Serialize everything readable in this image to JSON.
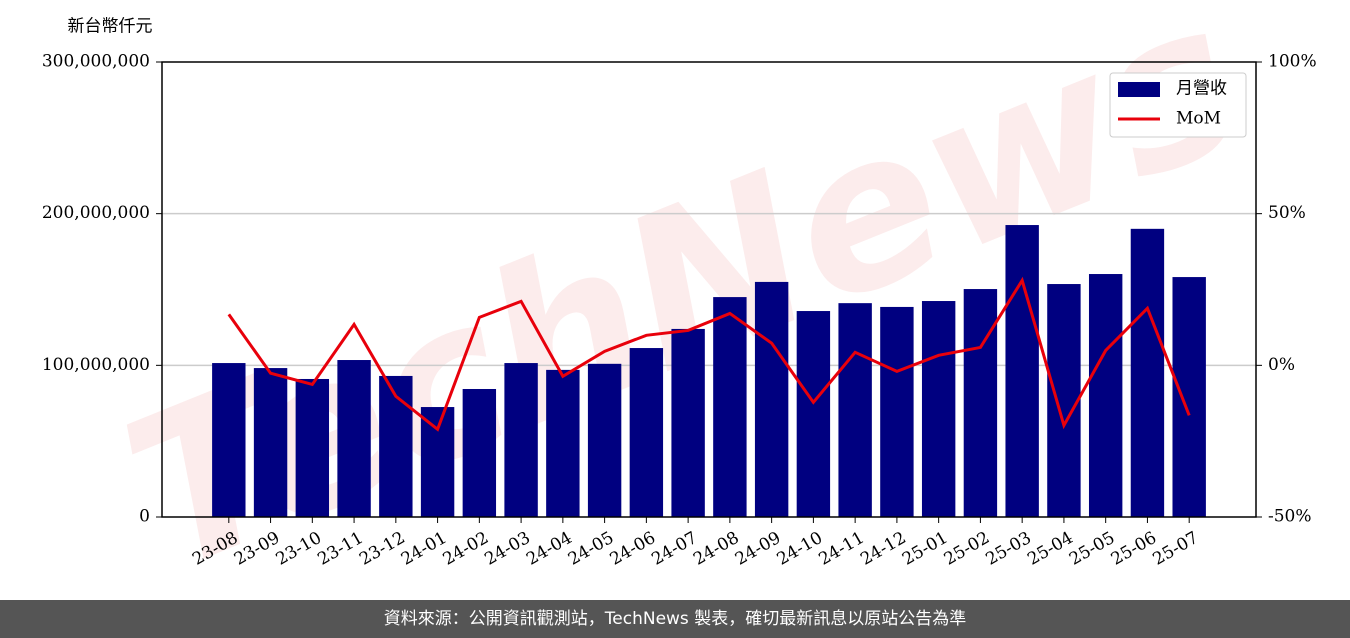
{
  "chart_data": {
    "type": "bar_line",
    "ylabel": "新台幣仟元",
    "watermark": "TechNews",
    "categories": [
      "23-08",
      "23-09",
      "23-10",
      "23-11",
      "23-12",
      "24-01",
      "24-02",
      "24-03",
      "24-04",
      "24-05",
      "24-06",
      "24-07",
      "24-08",
      "24-09",
      "24-10",
      "24-11",
      "24-12",
      "25-01",
      "25-02",
      "25-03",
      "25-04",
      "25-05",
      "25-06",
      "25-07"
    ],
    "series": [
      {
        "name": "月營收",
        "type": "bar",
        "color": "#000080",
        "values": [
          101500000,
          98200000,
          91000000,
          103500000,
          93000000,
          72500000,
          84400000,
          101500000,
          97000000,
          101000000,
          111400000,
          124000000,
          145000000,
          155000000,
          135800000,
          141000000,
          138500000,
          142400000,
          150300000,
          192500000,
          153600000,
          160200000,
          190000000,
          158200000
        ]
      },
      {
        "name": "MoM",
        "type": "line",
        "axis": "y2",
        "color": "#e8000b",
        "values": [
          16.8,
          -2.6,
          -6.3,
          13.5,
          -10.2,
          -21.1,
          15.8,
          21.1,
          -3.6,
          4.6,
          9.9,
          11.5,
          17.1,
          7.3,
          -12.2,
          4.3,
          -2.0,
          3.3,
          5.9,
          28.0,
          -19.8,
          4.9,
          18.8,
          -16.5
        ]
      }
    ],
    "ylim": [
      0,
      300000000
    ],
    "yticks": [
      0,
      {
        "value": 100000000,
        "label": "100,000,000"
      },
      {
        "value": 200000000,
        "label": "200,000,000"
      },
      {
        "value": 300000000,
        "label": "300,000,000"
      }
    ],
    "y2lim": [
      -50,
      100
    ],
    "y2ticks": [
      {
        "value": -50,
        "label": "-50%"
      },
      {
        "value": 0,
        "label": "0%"
      },
      {
        "value": 50,
        "label": "50%"
      },
      {
        "value": 100,
        "label": "100%"
      }
    ],
    "grid": true,
    "legend": "upper right"
  },
  "footer": "資料來源：公開資訊觀測站，TechNews 製表，確切最新訊息以原站公告為準"
}
